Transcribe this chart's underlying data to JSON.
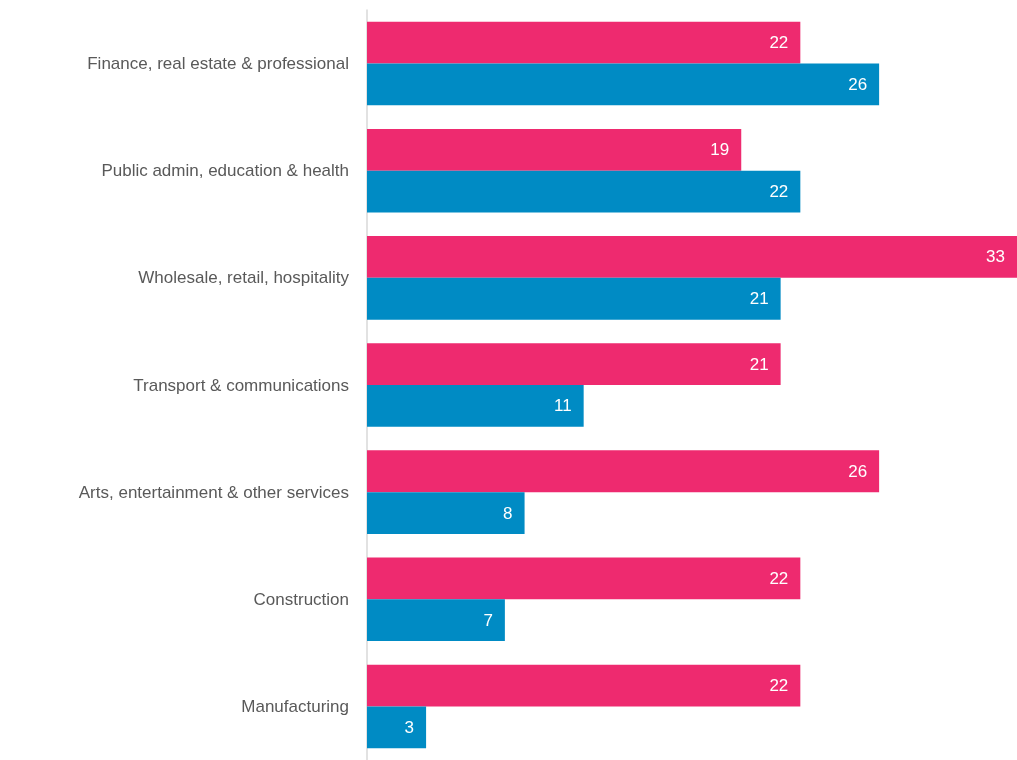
{
  "chart_data": {
    "type": "bar",
    "orientation": "horizontal",
    "categories": [
      "Finance, real estate & professional",
      "Public admin, education & health",
      "Wholesale, retail, hospitality",
      "Transport & communications",
      "Arts, entertainment & other services",
      "Construction",
      "Manufacturing"
    ],
    "series": [
      {
        "color": "#ee2a6f",
        "values": [
          22,
          19,
          33,
          21,
          26,
          22,
          22
        ]
      },
      {
        "color": "#008bc4",
        "values": [
          26,
          22,
          21,
          11,
          8,
          7,
          3
        ]
      }
    ],
    "data_labels": true,
    "grid": false
  }
}
